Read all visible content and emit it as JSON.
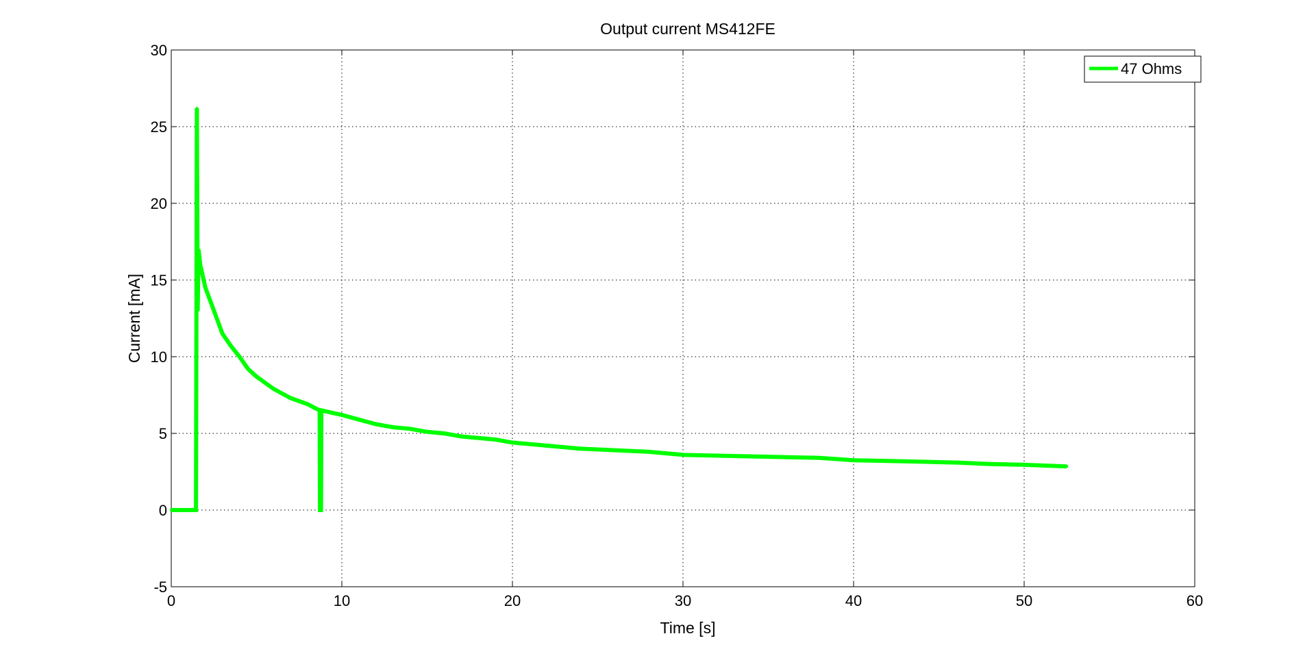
{
  "chart_data": {
    "type": "line",
    "title": "Output current MS412FE",
    "xlabel": "Time [s]",
    "ylabel": "Current [mA]",
    "xlim": [
      0,
      60
    ],
    "ylim": [
      -5,
      30
    ],
    "xticks": [
      0,
      10,
      20,
      30,
      40,
      50,
      60
    ],
    "yticks": [
      -5,
      0,
      5,
      10,
      15,
      20,
      25,
      30
    ],
    "xtick_labels": [
      "0",
      "10",
      "20",
      "30",
      "40",
      "50",
      "60"
    ],
    "ytick_labels": [
      "-5",
      "0",
      "5",
      "10",
      "15",
      "20",
      "25",
      "30"
    ],
    "grid": true,
    "legend_position": "top-right",
    "series": [
      {
        "name": "47 Ohms",
        "color": "#00ff00",
        "x": [
          0,
          0.3,
          0.6,
          0.9,
          1.2,
          1.45,
          1.5,
          1.55,
          1.6,
          1.7,
          2.0,
          2.5,
          3.0,
          3.5,
          4.0,
          4.5,
          5.0,
          6.0,
          7.0,
          8.0,
          8.7,
          8.72,
          8.78,
          8.8,
          10,
          11,
          12,
          13,
          14,
          15,
          16,
          17,
          18,
          19,
          20,
          22,
          24,
          26,
          28,
          30,
          32,
          34,
          36,
          38,
          40,
          42,
          44,
          46,
          48,
          50,
          52.5
        ],
        "y": [
          0,
          0,
          0,
          0,
          0,
          0,
          26.2,
          13,
          17,
          16,
          14.5,
          13,
          11.5,
          10.7,
          10,
          9.2,
          8.7,
          7.9,
          7.3,
          6.9,
          6.5,
          0,
          0,
          6.5,
          6.2,
          5.9,
          5.6,
          5.4,
          5.3,
          5.1,
          5.0,
          4.8,
          4.7,
          4.6,
          4.4,
          4.2,
          4.0,
          3.9,
          3.8,
          3.6,
          3.55,
          3.5,
          3.45,
          3.4,
          3.25,
          3.2,
          3.15,
          3.1,
          3.0,
          2.95,
          2.85
        ]
      }
    ]
  }
}
